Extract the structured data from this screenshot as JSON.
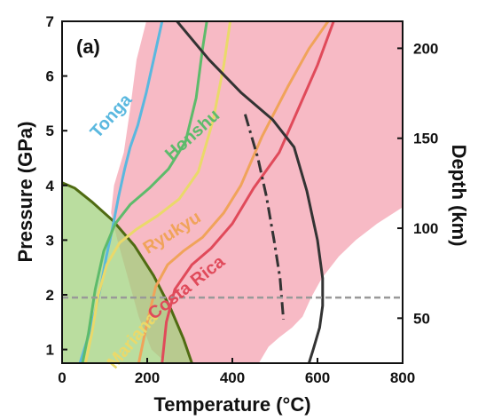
{
  "chart_data": {
    "type": "line",
    "panel_label": "(a)",
    "xlabel": "Temperature (°C)",
    "ylabel": "Pressure (GPa)",
    "y2label": "Depth (km)",
    "xlim": [
      0,
      800
    ],
    "ylim": [
      0.75,
      7
    ],
    "y2lim": [
      25,
      215
    ],
    "x_ticks": [
      0,
      200,
      400,
      600,
      800
    ],
    "y_ticks": [
      1,
      2,
      3,
      4,
      5,
      6,
      7
    ],
    "y2_ticks": [
      50,
      100,
      150,
      200
    ],
    "grid": false,
    "regions": [
      {
        "name": "pink-field",
        "color": "#f7b6c2",
        "points": [
          [
            198,
            7.0
          ],
          [
            262,
            7.0
          ],
          [
            313,
            7.0
          ],
          [
            800,
            7.0
          ],
          [
            800,
            3.6
          ],
          [
            740,
            3.3
          ],
          [
            690,
            3.0
          ],
          [
            650,
            2.7
          ],
          [
            610,
            2.3
          ],
          [
            585,
            1.95
          ],
          [
            565,
            1.6
          ],
          [
            540,
            1.4
          ],
          [
            510,
            1.22
          ],
          [
            485,
            1.05
          ],
          [
            462,
            0.75
          ],
          [
            245,
            0.75
          ],
          [
            210,
            1.0
          ],
          [
            180,
            1.6
          ],
          [
            155,
            2.3
          ],
          [
            130,
            3.0
          ],
          [
            115,
            3.5
          ],
          [
            122,
            4.0
          ],
          [
            145,
            4.6
          ],
          [
            160,
            5.4
          ],
          [
            175,
            6.3
          ]
        ]
      },
      {
        "name": "green-field",
        "color": "#9fd07a",
        "points": [
          [
            0,
            4.05
          ],
          [
            30,
            3.95
          ],
          [
            70,
            3.7
          ],
          [
            120,
            3.35
          ],
          [
            170,
            2.9
          ],
          [
            215,
            2.35
          ],
          [
            255,
            1.75
          ],
          [
            285,
            1.2
          ],
          [
            305,
            0.75
          ],
          [
            0,
            0.75
          ]
        ]
      }
    ],
    "series": [
      {
        "name": "Tonga",
        "color": "#5ab8df",
        "dash": "solid",
        "points": [
          [
            42,
            0.75
          ],
          [
            60,
            1.2
          ],
          [
            78,
            1.7
          ],
          [
            92,
            2.2
          ],
          [
            104,
            2.7
          ],
          [
            118,
            3.2
          ],
          [
            133,
            3.8
          ],
          [
            147,
            4.3
          ],
          [
            160,
            4.7
          ],
          [
            178,
            5.1
          ],
          [
            198,
            5.7
          ],
          [
            218,
            6.4
          ],
          [
            235,
            7.0
          ]
        ]
      },
      {
        "name": "Honshu",
        "color": "#5dbb6b",
        "dash": "solid",
        "points": [
          [
            48,
            0.75
          ],
          [
            62,
            1.3
          ],
          [
            78,
            2.1
          ],
          [
            98,
            2.8
          ],
          [
            125,
            3.3
          ],
          [
            160,
            3.65
          ],
          [
            205,
            3.95
          ],
          [
            250,
            4.3
          ],
          [
            290,
            4.8
          ],
          [
            315,
            5.6
          ],
          [
            330,
            6.5
          ],
          [
            340,
            7.0
          ]
        ]
      },
      {
        "name": "Mariana",
        "color": "#ead96a",
        "dash": "solid",
        "points": [
          [
            55,
            0.75
          ],
          [
            70,
            1.3
          ],
          [
            85,
            2.0
          ],
          [
            105,
            2.55
          ],
          [
            135,
            2.95
          ],
          [
            175,
            3.2
          ],
          [
            225,
            3.45
          ],
          [
            275,
            3.75
          ],
          [
            320,
            4.25
          ],
          [
            355,
            5.2
          ],
          [
            380,
            6.2
          ],
          [
            395,
            7.0
          ]
        ]
      },
      {
        "name": "Ryukyu",
        "color": "#f0a35a",
        "dash": "solid",
        "points": [
          [
            180,
            0.75
          ],
          [
            200,
            1.5
          ],
          [
            220,
            2.15
          ],
          [
            248,
            2.55
          ],
          [
            285,
            2.8
          ],
          [
            330,
            3.05
          ],
          [
            380,
            3.5
          ],
          [
            420,
            4.0
          ],
          [
            470,
            4.9
          ],
          [
            530,
            5.8
          ],
          [
            580,
            6.5
          ],
          [
            625,
            7.0
          ]
        ]
      },
      {
        "name": "Costa Rica",
        "color": "#e04a5a",
        "dash": "solid",
        "points": [
          [
            235,
            0.75
          ],
          [
            245,
            1.5
          ],
          [
            265,
            2.1
          ],
          [
            305,
            2.55
          ],
          [
            350,
            2.85
          ],
          [
            400,
            3.3
          ],
          [
            450,
            3.95
          ],
          [
            510,
            4.6
          ],
          [
            555,
            5.4
          ],
          [
            600,
            6.2
          ],
          [
            638,
            7.0
          ]
        ]
      },
      {
        "name": "black-solid",
        "color": "#333333",
        "dash": "solid",
        "points": [
          [
            270,
            7.0
          ],
          [
            345,
            6.3
          ],
          [
            420,
            5.7
          ],
          [
            495,
            5.2
          ],
          [
            545,
            4.7
          ],
          [
            575,
            3.9
          ],
          [
            600,
            3.0
          ],
          [
            612,
            2.3
          ],
          [
            612,
            1.8
          ],
          [
            605,
            1.4
          ],
          [
            590,
            1.0
          ],
          [
            580,
            0.75
          ]
        ]
      },
      {
        "name": "black-dashdot",
        "color": "#333333",
        "dash": "dashdot",
        "points": [
          [
            430,
            5.3
          ],
          [
            460,
            4.5
          ],
          [
            480,
            3.8
          ],
          [
            498,
            3.0
          ],
          [
            512,
            2.3
          ],
          [
            520,
            1.55
          ]
        ]
      }
    ],
    "labels": [
      {
        "text": "Tonga",
        "x": 125,
        "y": 5.2,
        "angle": -48,
        "color": "#5ab8df"
      },
      {
        "text": "Honshu",
        "x": 315,
        "y": 4.85,
        "angle": -42,
        "color": "#5dbb6b"
      },
      {
        "text": "Ryukyu",
        "x": 265,
        "y": 3.05,
        "angle": -32,
        "color": "#f0a35a"
      },
      {
        "text": "Mariana",
        "x": 175,
        "y": 1.1,
        "angle": -50,
        "color": "#ead96a"
      },
      {
        "text": "Costa Rica",
        "x": 300,
        "y": 2.05,
        "angle": -38,
        "color": "#e04a5a"
      }
    ],
    "reference_line": {
      "y": 1.95,
      "color": "#999999",
      "dash": "dashed"
    }
  }
}
